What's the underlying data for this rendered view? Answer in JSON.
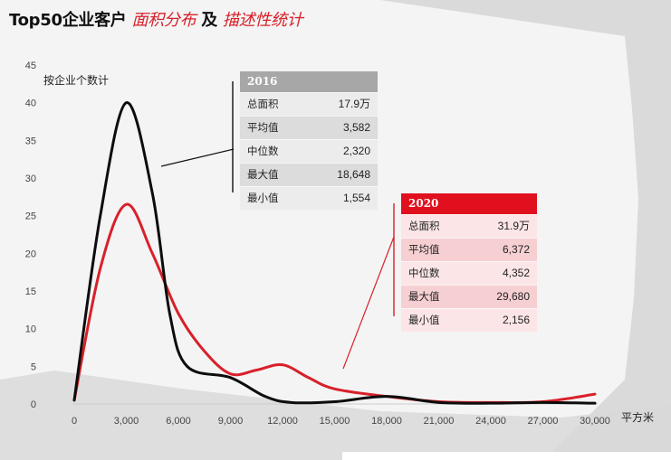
{
  "title": {
    "main": "Top50企业客户",
    "accent1": "面积分布",
    "connector": "及",
    "accent2": "描述性统计"
  },
  "colors": {
    "series_2016": "#0d0d0d",
    "series_2020": "#d9202a",
    "header_2020": "#e0101e",
    "header_2016": "#a7a7a7"
  },
  "chart_data": {
    "type": "line",
    "title": "Top50企业客户 面积分布 及 描述性统计",
    "ylabel": "按企业个数计",
    "xlabel": "平方米",
    "xlim": [
      0,
      30000
    ],
    "ylim": [
      0,
      45
    ],
    "x_ticks": [
      "0",
      "3,000",
      "6,000",
      "9,000",
      "12,000",
      "15,000",
      "18,000",
      "21,000",
      "24,000",
      "27,000",
      "30,000"
    ],
    "y_ticks": [
      "0",
      "5",
      "10",
      "15",
      "20",
      "25",
      "30",
      "35",
      "40",
      "45"
    ],
    "series": [
      {
        "name": "2016",
        "color": "#0d0d0d",
        "x": [
          0,
          1500,
          3000,
          4500,
          5500,
          6500,
          9000,
          11000,
          12500,
          15000,
          18000,
          21000,
          24000,
          27000,
          30000
        ],
        "y": [
          0.5,
          25,
          40,
          28,
          12,
          5,
          3.5,
          1,
          0.2,
          0.3,
          1,
          0.2,
          0.1,
          0.2,
          0.1
        ]
      },
      {
        "name": "2020",
        "color": "#d9202a",
        "x": [
          0,
          1500,
          3000,
          4500,
          6000,
          7500,
          9000,
          10500,
          12000,
          13500,
          15000,
          18000,
          21000,
          24000,
          27000,
          30000
        ],
        "y": [
          0.5,
          18,
          26.5,
          20,
          12,
          7,
          4,
          4.5,
          5.2,
          3.5,
          2,
          1,
          0.3,
          0.2,
          0.3,
          1.3
        ]
      }
    ]
  },
  "stats": {
    "t2016": {
      "year": "2016",
      "rows": [
        {
          "label": "总面积",
          "value": "17.9万"
        },
        {
          "label": "平均值",
          "value": "3,582"
        },
        {
          "label": "中位数",
          "value": "2,320"
        },
        {
          "label": "最大值",
          "value": "18,648"
        },
        {
          "label": "最小值",
          "value": "1,554"
        }
      ]
    },
    "t2020": {
      "year": "2020",
      "rows": [
        {
          "label": "总面积",
          "value": "31.9万"
        },
        {
          "label": "平均值",
          "value": "6,372"
        },
        {
          "label": "中位数",
          "value": "4,352"
        },
        {
          "label": "最大值",
          "value": "29,680"
        },
        {
          "label": "最小值",
          "value": "2,156"
        }
      ]
    }
  }
}
